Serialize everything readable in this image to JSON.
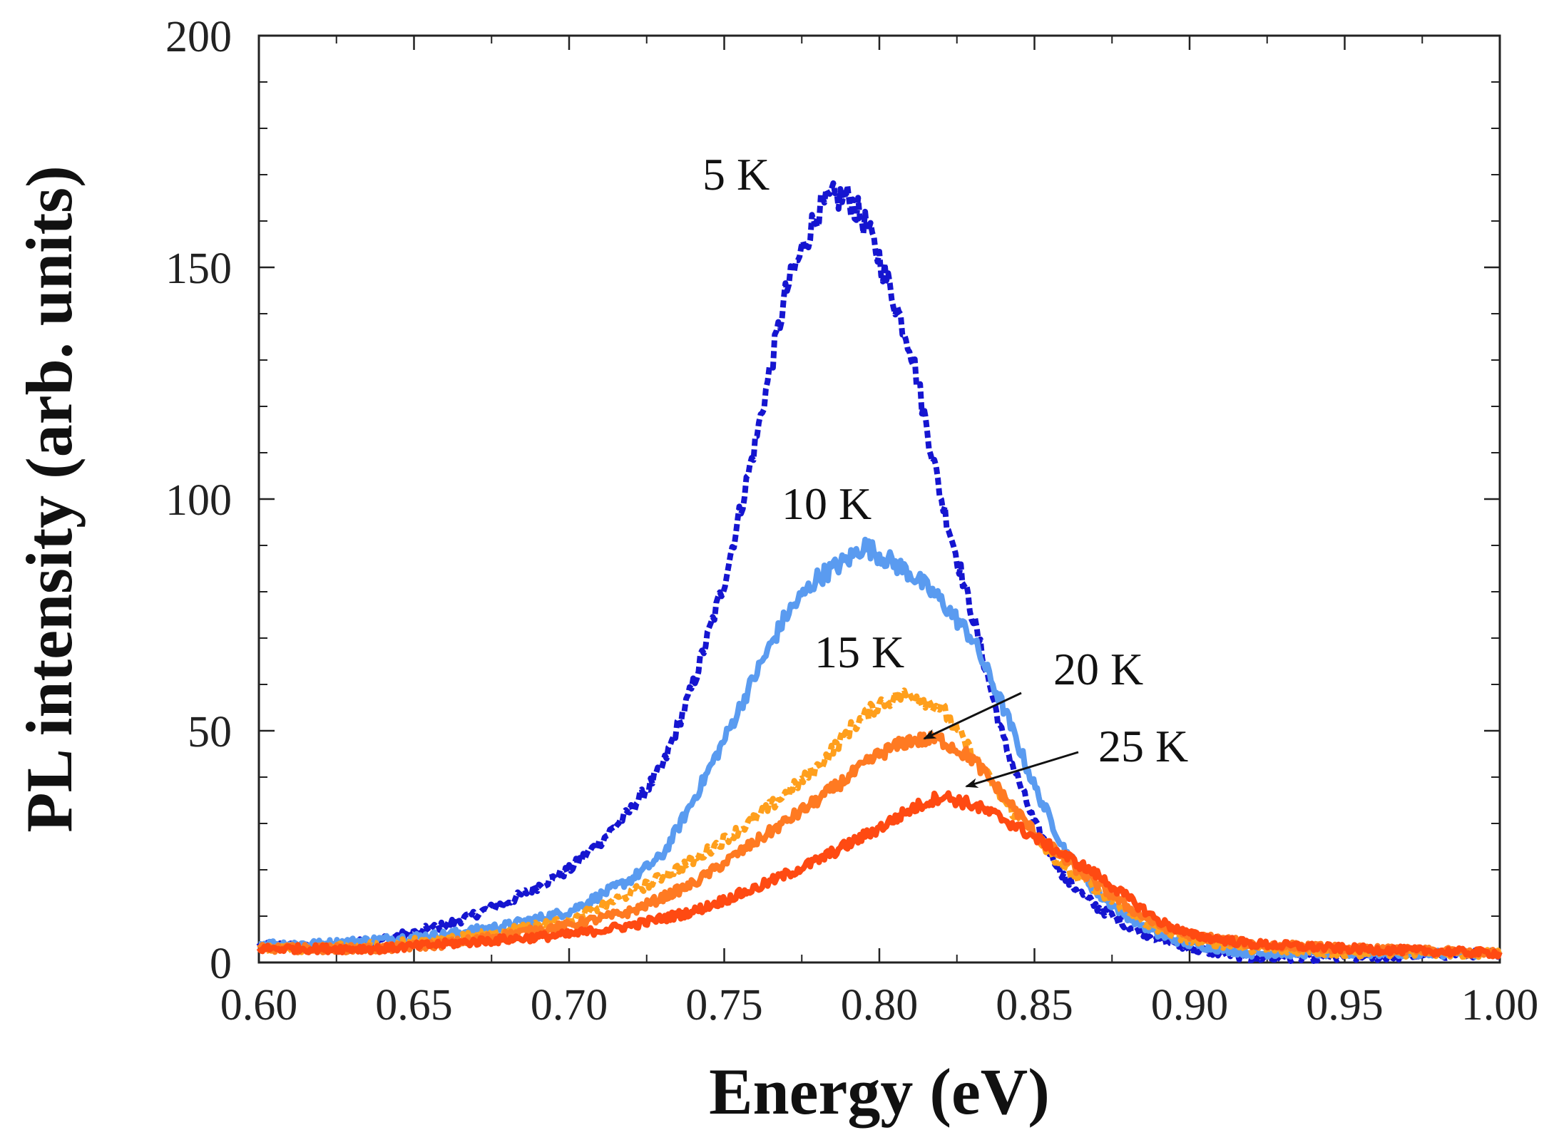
{
  "chart_data": {
    "type": "line",
    "title": "",
    "xlabel": "Energy (eV)",
    "ylabel": "PL intensity (arb. units)",
    "xlim": [
      0.6,
      1.0
    ],
    "ylim": [
      0,
      200
    ],
    "grid": false,
    "x_ticks": [
      0.6,
      0.65,
      0.7,
      0.75,
      0.8,
      0.85,
      0.9,
      0.95,
      1.0
    ],
    "x_tick_labels": [
      "0.60",
      "0.65",
      "0.70",
      "0.75",
      "0.80",
      "0.85",
      "0.90",
      "0.95",
      "1.00"
    ],
    "y_ticks": [
      0,
      50,
      100,
      150,
      200
    ],
    "y_tick_labels": [
      "0",
      "50",
      "100",
      "150",
      "200"
    ],
    "series": [
      {
        "name": "5 K",
        "label": "5 K",
        "color": "#1515d0",
        "dashed": true,
        "points": [
          [
            0.6,
            4
          ],
          [
            0.62,
            3
          ],
          [
            0.64,
            5
          ],
          [
            0.66,
            8
          ],
          [
            0.68,
            13
          ],
          [
            0.7,
            20
          ],
          [
            0.71,
            26
          ],
          [
            0.72,
            33
          ],
          [
            0.73,
            42
          ],
          [
            0.74,
            60
          ],
          [
            0.75,
            82
          ],
          [
            0.76,
            112
          ],
          [
            0.77,
            145
          ],
          [
            0.78,
            162
          ],
          [
            0.785,
            165
          ],
          [
            0.79,
            165
          ],
          [
            0.795,
            160
          ],
          [
            0.8,
            152
          ],
          [
            0.81,
            133
          ],
          [
            0.82,
            100
          ],
          [
            0.83,
            75
          ],
          [
            0.84,
            48
          ],
          [
            0.85,
            30
          ],
          [
            0.86,
            18
          ],
          [
            0.87,
            12
          ],
          [
            0.88,
            8
          ],
          [
            0.89,
            5
          ],
          [
            0.9,
            3
          ],
          [
            0.92,
            1
          ],
          [
            0.95,
            1
          ],
          [
            1.0,
            2
          ]
        ]
      },
      {
        "name": "10 K",
        "label": "10 K",
        "color": "#5a9bf0",
        "dashed": false,
        "points": [
          [
            0.6,
            4
          ],
          [
            0.62,
            4
          ],
          [
            0.64,
            5
          ],
          [
            0.66,
            6
          ],
          [
            0.68,
            8
          ],
          [
            0.7,
            11
          ],
          [
            0.72,
            18
          ],
          [
            0.73,
            23
          ],
          [
            0.74,
            35
          ],
          [
            0.75,
            48
          ],
          [
            0.76,
            62
          ],
          [
            0.77,
            75
          ],
          [
            0.78,
            83
          ],
          [
            0.79,
            87
          ],
          [
            0.795,
            90
          ],
          [
            0.8,
            88
          ],
          [
            0.81,
            84
          ],
          [
            0.82,
            78
          ],
          [
            0.83,
            70
          ],
          [
            0.84,
            55
          ],
          [
            0.85,
            38
          ],
          [
            0.86,
            24
          ],
          [
            0.87,
            15
          ],
          [
            0.88,
            10
          ],
          [
            0.89,
            6
          ],
          [
            0.9,
            4
          ],
          [
            0.92,
            2
          ],
          [
            0.95,
            2
          ],
          [
            1.0,
            2
          ]
        ]
      },
      {
        "name": "15 K",
        "label": "15 K",
        "color": "#ff9f1c",
        "dashed": true,
        "points": [
          [
            0.6,
            3
          ],
          [
            0.62,
            3
          ],
          [
            0.64,
            4
          ],
          [
            0.66,
            5
          ],
          [
            0.68,
            7
          ],
          [
            0.7,
            9
          ],
          [
            0.72,
            15
          ],
          [
            0.74,
            22
          ],
          [
            0.76,
            31
          ],
          [
            0.78,
            42
          ],
          [
            0.79,
            50
          ],
          [
            0.8,
            56
          ],
          [
            0.81,
            58
          ],
          [
            0.82,
            55
          ],
          [
            0.83,
            45
          ],
          [
            0.84,
            35
          ],
          [
            0.85,
            27
          ],
          [
            0.86,
            20
          ],
          [
            0.87,
            16
          ],
          [
            0.88,
            11
          ],
          [
            0.89,
            7
          ],
          [
            0.9,
            5
          ],
          [
            0.92,
            3
          ],
          [
            0.95,
            2
          ],
          [
            1.0,
            2
          ]
        ]
      },
      {
        "name": "20 K",
        "label": "20 K",
        "color": "#ff7a22",
        "dashed": false,
        "points": [
          [
            0.6,
            3
          ],
          [
            0.62,
            3
          ],
          [
            0.64,
            3
          ],
          [
            0.66,
            4
          ],
          [
            0.68,
            6
          ],
          [
            0.7,
            8
          ],
          [
            0.72,
            11
          ],
          [
            0.74,
            17
          ],
          [
            0.76,
            26
          ],
          [
            0.78,
            35
          ],
          [
            0.79,
            40
          ],
          [
            0.8,
            45
          ],
          [
            0.81,
            48
          ],
          [
            0.82,
            48
          ],
          [
            0.83,
            44
          ],
          [
            0.84,
            36
          ],
          [
            0.85,
            28
          ],
          [
            0.86,
            22
          ],
          [
            0.87,
            17
          ],
          [
            0.88,
            12
          ],
          [
            0.89,
            8
          ],
          [
            0.9,
            6
          ],
          [
            0.92,
            4
          ],
          [
            0.95,
            3
          ],
          [
            1.0,
            2
          ]
        ]
      },
      {
        "name": "25 K",
        "label": "25 K",
        "color": "#ff4a12",
        "dashed": false,
        "points": [
          [
            0.6,
            3
          ],
          [
            0.62,
            3
          ],
          [
            0.64,
            3
          ],
          [
            0.66,
            4
          ],
          [
            0.68,
            5
          ],
          [
            0.7,
            6
          ],
          [
            0.72,
            8
          ],
          [
            0.74,
            11
          ],
          [
            0.76,
            16
          ],
          [
            0.78,
            22
          ],
          [
            0.8,
            29
          ],
          [
            0.81,
            33
          ],
          [
            0.82,
            36
          ],
          [
            0.83,
            34
          ],
          [
            0.84,
            31
          ],
          [
            0.85,
            27
          ],
          [
            0.86,
            23
          ],
          [
            0.87,
            19
          ],
          [
            0.88,
            14
          ],
          [
            0.89,
            9
          ],
          [
            0.9,
            6
          ],
          [
            0.92,
            4
          ],
          [
            0.95,
            3
          ],
          [
            1.0,
            2
          ]
        ]
      }
    ],
    "annotations": [
      {
        "text": "20 K",
        "target_series": "20 K",
        "arrow_to": [
          0.815,
          49
        ]
      },
      {
        "text": "25 K",
        "target_series": "25 K",
        "arrow_to": [
          0.83,
          36
        ]
      }
    ]
  }
}
